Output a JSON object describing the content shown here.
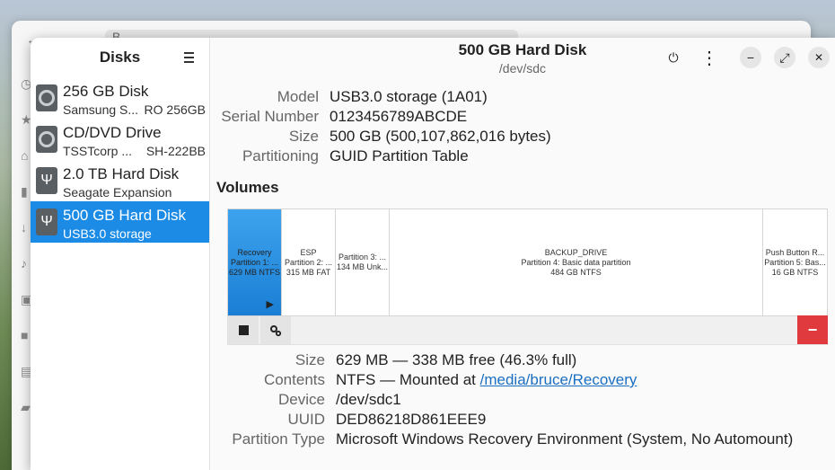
{
  "back_window": {
    "address": "B"
  },
  "sidebar": {
    "title": "Disks",
    "drives": [
      {
        "name": "256 GB Disk",
        "sub_left": "Samsung S...",
        "sub_right": "RO 256GB",
        "icon": "hard-disk-icon",
        "selected": false
      },
      {
        "name": "CD/DVD Drive",
        "sub_left": "TSSTcorp ...",
        "sub_right": "SH-222BB",
        "icon": "optical-drive-icon",
        "selected": false
      },
      {
        "name": "2.0 TB Hard Disk",
        "sub_left": "Seagate Expansion",
        "sub_right": "",
        "icon": "usb-icon",
        "selected": false
      },
      {
        "name": "500 GB Hard Disk",
        "sub_left": "USB3.0 storage",
        "sub_right": "",
        "icon": "usb-icon",
        "selected": true
      }
    ]
  },
  "header": {
    "title": "500 GB Hard Disk",
    "subtitle": "/dev/sdc",
    "power_icon": "⏻",
    "kebab_icon": "⋮",
    "minimize_icon": "−",
    "maximize_icon": "⤢",
    "close_icon": "✕"
  },
  "disk_props": [
    {
      "label": "Model",
      "value": "USB3.0 storage (1A01)"
    },
    {
      "label": "Serial Number",
      "value": "0123456789ABCDE"
    },
    {
      "label": "Size",
      "value": "500 GB (500,107,862,016 bytes)"
    },
    {
      "label": "Partitioning",
      "value": "GUID Partition Table"
    }
  ],
  "volumes": {
    "title": "Volumes",
    "partitions": [
      {
        "line1": "Recovery",
        "line2": "Partition 1: ...",
        "line3": "629 MB NTFS",
        "selected": true
      },
      {
        "line1": "ESP",
        "line2": "Partition 2: ...",
        "line3": "315 MB FAT",
        "selected": false
      },
      {
        "line1": "",
        "line2": "Partition 3: ...",
        "line3": "134 MB Unk...",
        "selected": false
      },
      {
        "line1": "BACKUP_DRIVE",
        "line2": "Partition 4: Basic data partition",
        "line3": "484 GB NTFS",
        "selected": false
      },
      {
        "line1": "Push Button R...",
        "line2": "Partition 5: Bas...",
        "line3": "16 GB NTFS",
        "selected": false
      }
    ],
    "mount_indicator": "▶",
    "delete_label": "−"
  },
  "partition_details": {
    "size": {
      "label": "Size",
      "value": "629 MB — 338 MB free (46.3% full)"
    },
    "contents": {
      "label": "Contents",
      "prefix": "NTFS — Mounted at ",
      "link": "/media/bruce/Recovery"
    },
    "device": {
      "label": "Device",
      "value": "/dev/sdc1"
    },
    "uuid": {
      "label": "UUID",
      "value": "DED86218D861EEE9"
    },
    "partition_type": {
      "label": "Partition Type",
      "value": "Microsoft Windows Recovery Environment (System, No Automount)"
    }
  },
  "colors": {
    "accent": "#1b8be6",
    "danger": "#e0393e",
    "link": "#1b6fc2"
  }
}
